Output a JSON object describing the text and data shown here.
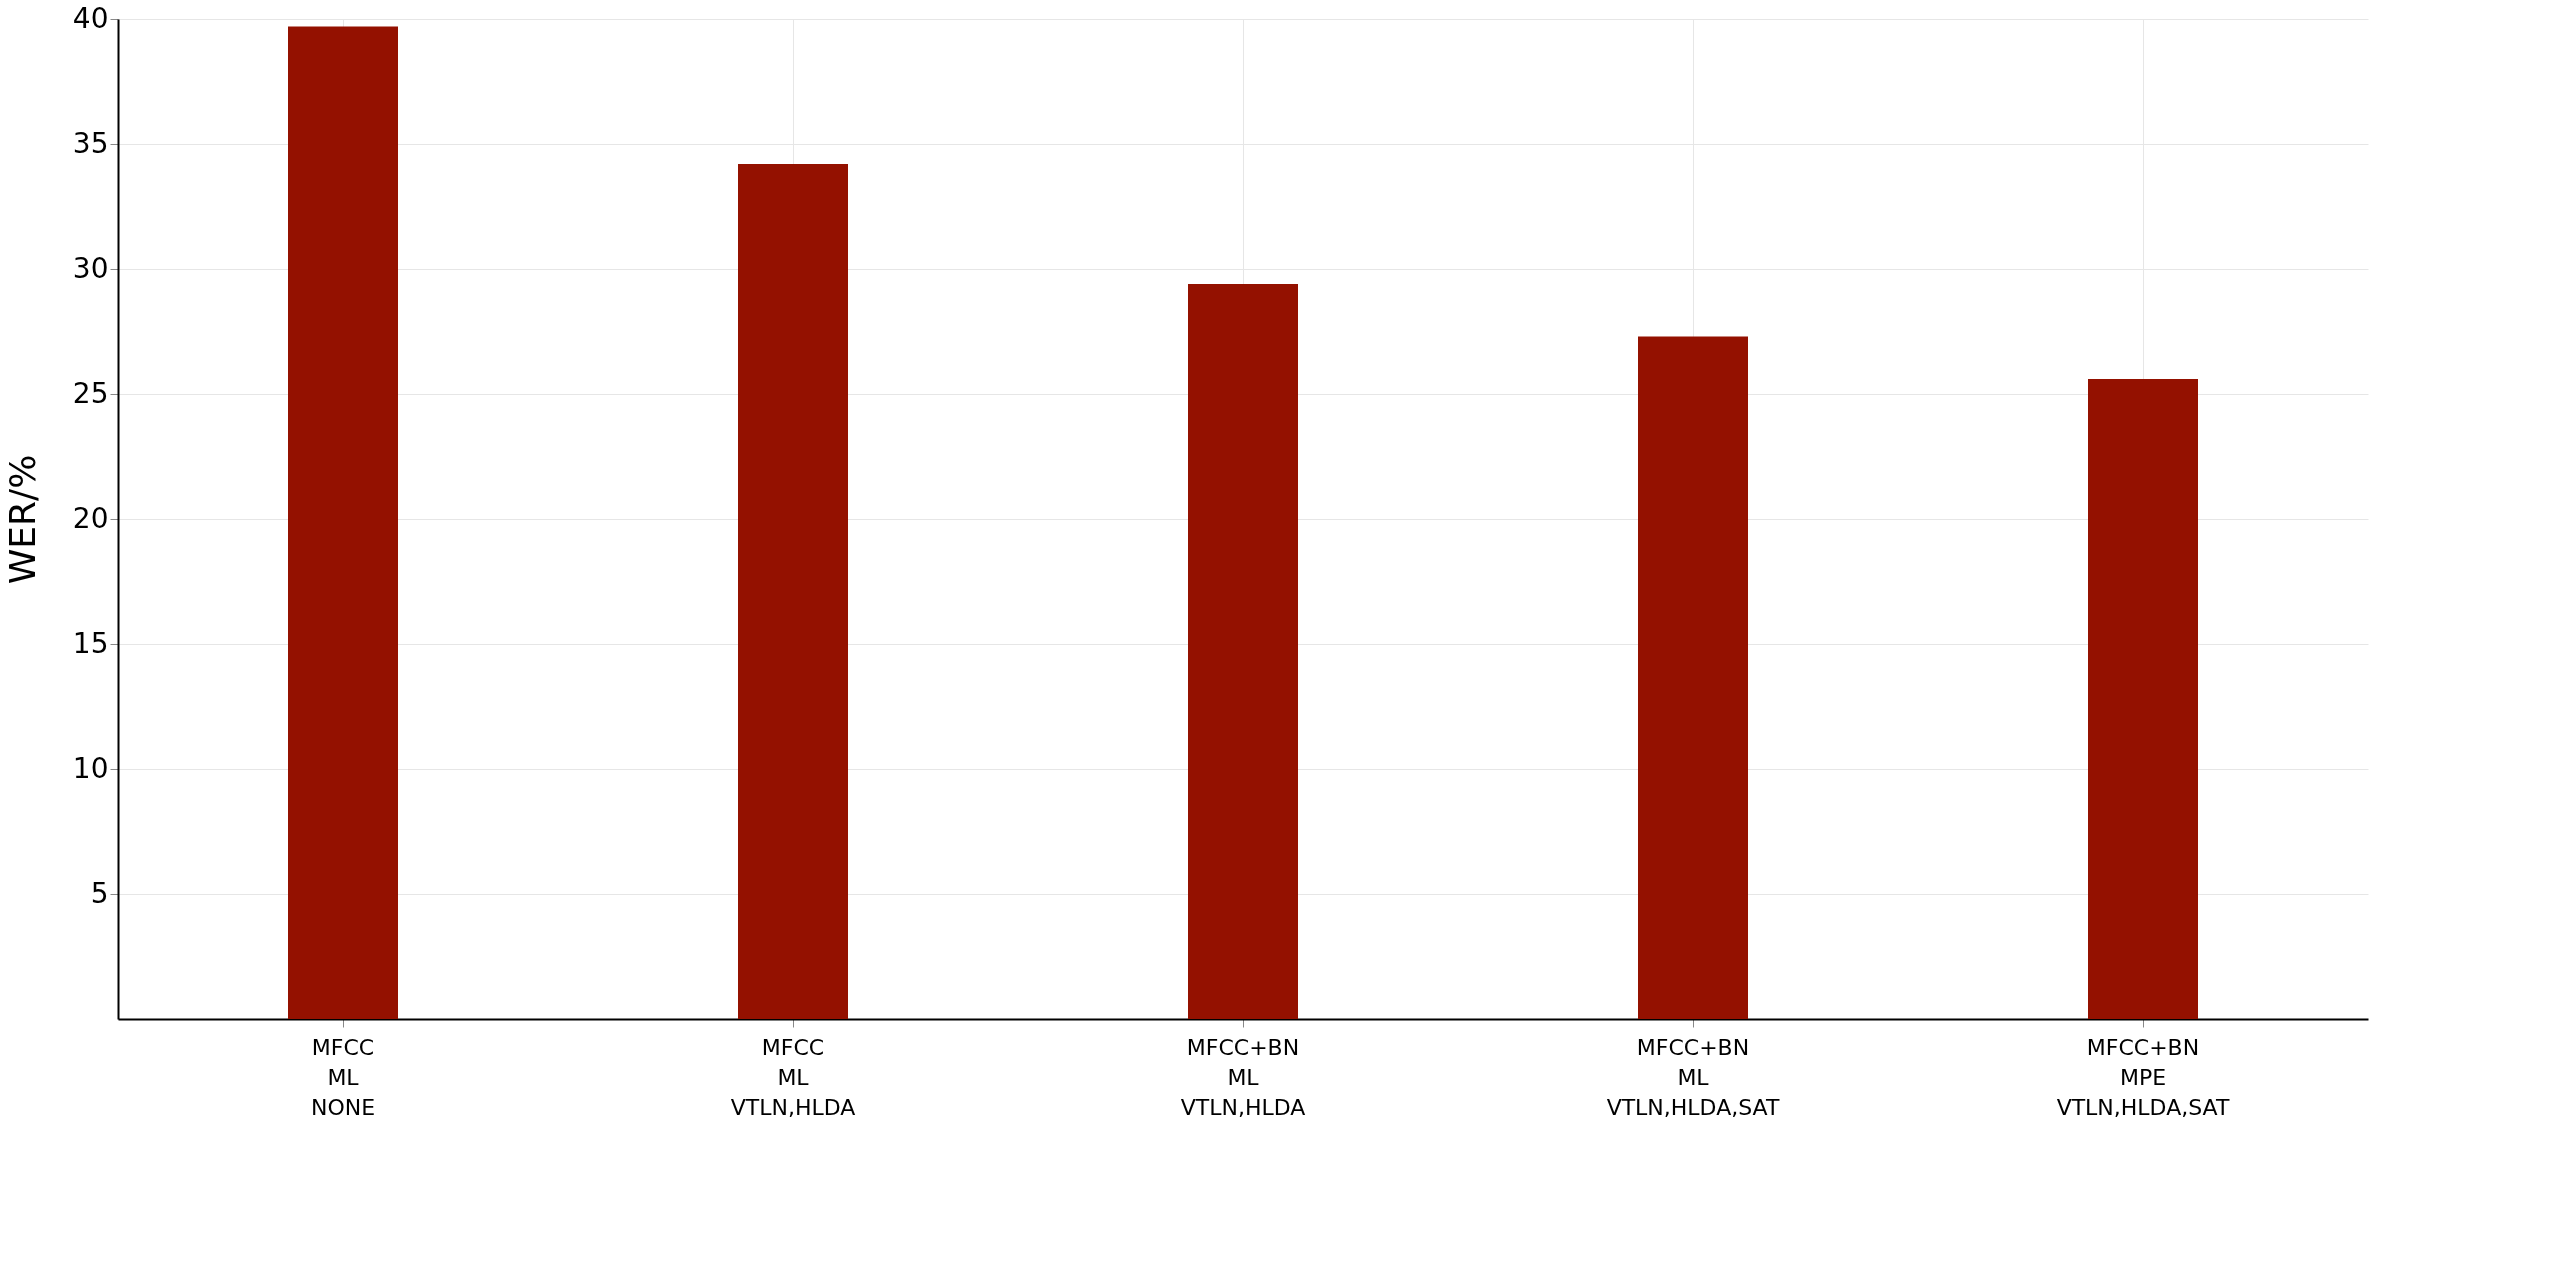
{
  "chart_data": {
    "type": "bar",
    "ylabel": "WER/%",
    "categories": [
      "MFCC\nML\nNONE",
      "MFCC\nML\nVTLN,HLDA",
      "MFCC+BN\nML\nVTLN,HLDA",
      "MFCC+BN\nML\nVTLN,HLDA,SAT",
      "MFCC+BN\nMPE\nVTLN,HLDA,SAT"
    ],
    "values": [
      39.7,
      34.2,
      29.4,
      27.3,
      25.6
    ],
    "color": "#941100",
    "ylim": [
      0,
      40
    ],
    "yticks": [
      5,
      10,
      15,
      20,
      25,
      30,
      35,
      40
    ],
    "grid": true
  }
}
